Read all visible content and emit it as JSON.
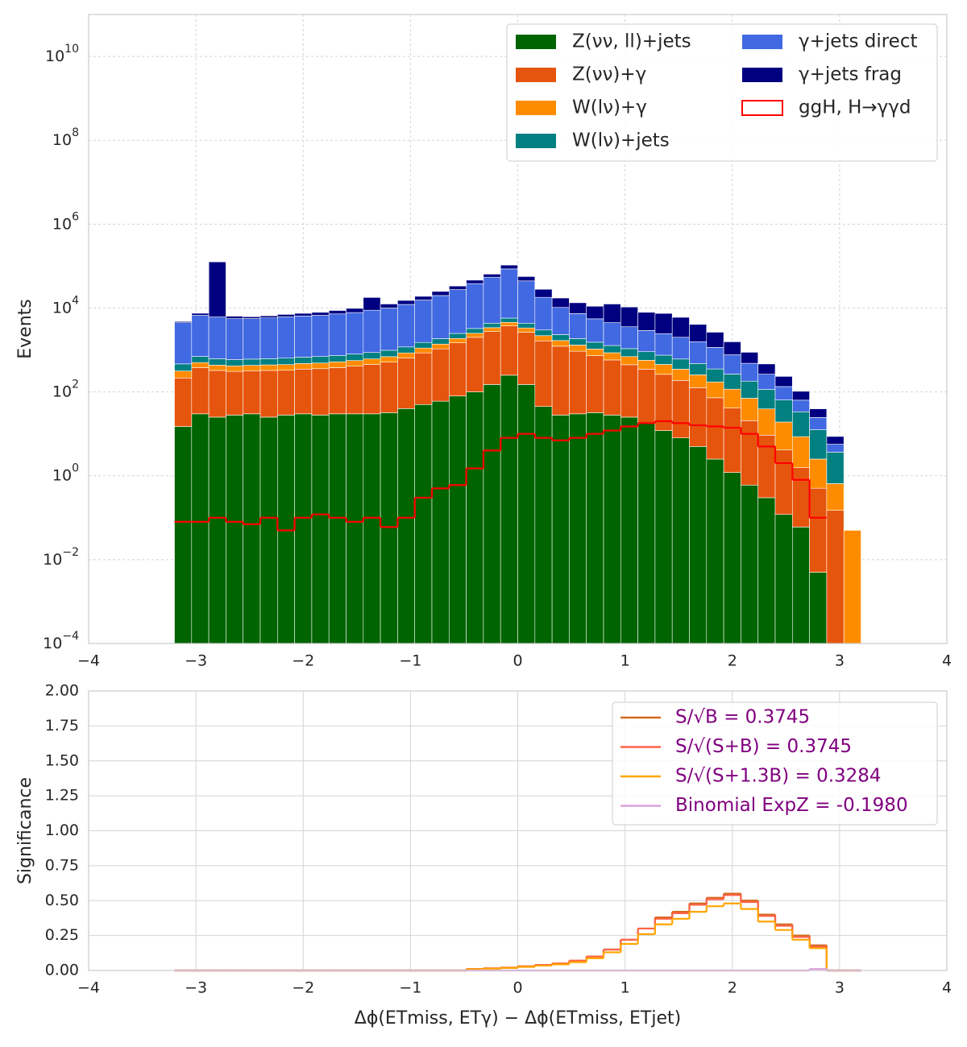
{
  "chart_data": [
    {
      "type": "histogram",
      "log": true,
      "grid": true,
      "grid_style": "dashed",
      "ylabel": "Events",
      "legend": "upper right",
      "xlim": [
        -4,
        4
      ],
      "ylim": [
        0.0001,
        100000000000
      ],
      "xticks": [
        {
          "value": -4,
          "label": "−4"
        },
        {
          "value": -3,
          "label": "−3"
        },
        {
          "value": -2,
          "label": "−2"
        },
        {
          "value": -1,
          "label": "−1"
        },
        0,
        1,
        2,
        3,
        4
      ],
      "yticks": [
        {
          "value": 0.0001,
          "label": "10−4"
        },
        {
          "value": 0.01,
          "label": "10−2"
        },
        {
          "value": 1,
          "label": "100"
        },
        {
          "value": 100,
          "label": "102"
        },
        {
          "value": 10000,
          "label": "104"
        },
        {
          "value": 1000000,
          "label": "106"
        },
        {
          "value": 100000000,
          "label": "108"
        },
        {
          "value": 10000000000,
          "label": "1010"
        }
      ],
      "bins": [
        -3.2,
        -3.04,
        -2.88,
        -2.72,
        -2.56,
        -2.4,
        -2.24,
        -2.08,
        -1.92,
        -1.76,
        -1.6,
        -1.44,
        -1.28,
        -1.12,
        -0.96,
        -0.8,
        -0.64,
        -0.48,
        -0.32,
        -0.16,
        0,
        0.16,
        0.32,
        0.48,
        0.64,
        0.8,
        0.96,
        1.12,
        1.28,
        1.44,
        1.6,
        1.76,
        1.92,
        2.08,
        2.24,
        2.4,
        2.56,
        2.72,
        2.88,
        3.04,
        3.2
      ],
      "series": [
        {
          "name": "Z(νν, ll)+jets",
          "color": "#006400",
          "values": [
            15,
            30,
            25,
            28,
            30,
            25,
            28,
            30,
            28,
            30,
            30,
            30,
            32,
            40,
            50,
            60,
            80,
            100,
            150,
            250,
            150,
            45,
            28,
            30,
            32,
            28,
            25,
            18,
            12,
            8,
            5,
            2.5,
            1.2,
            0.6,
            0.3,
            0.12,
            0.06,
            0.005,
            0,
            0
          ]
        },
        {
          "name": "Z(νν)+γ",
          "color": "#e6550d",
          "values": [
            200,
            350,
            300,
            280,
            290,
            300,
            300,
            320,
            330,
            350,
            380,
            420,
            480,
            600,
            800,
            1000,
            1400,
            1900,
            2600,
            3500,
            2500,
            1600,
            1200,
            900,
            700,
            550,
            420,
            330,
            250,
            180,
            120,
            70,
            40,
            20,
            9,
            4,
            1.5,
            0.5,
            0.15,
            0
          ]
        },
        {
          "name": "W(lν)+γ",
          "color": "#ff8c00",
          "values": [
            100,
            120,
            110,
            110,
            110,
            115,
            120,
            125,
            130,
            140,
            150,
            160,
            180,
            210,
            260,
            320,
            400,
            500,
            650,
            800,
            700,
            550,
            450,
            380,
            320,
            280,
            250,
            220,
            190,
            160,
            130,
            100,
            75,
            50,
            30,
            15,
            7,
            2,
            0.5,
            0.05
          ]
        },
        {
          "name": "W(lν)+jets",
          "color": "#008080",
          "values": [
            150,
            200,
            180,
            170,
            175,
            180,
            190,
            200,
            210,
            220,
            240,
            260,
            290,
            330,
            400,
            480,
            600,
            750,
            950,
            1200,
            1000,
            800,
            650,
            550,
            480,
            420,
            380,
            340,
            300,
            260,
            220,
            180,
            150,
            110,
            75,
            45,
            25,
            10,
            3,
            0
          ]
        },
        {
          "name": "γ+jets direct",
          "color": "#4169e1",
          "values": [
            4000,
            6000,
            5500,
            5000,
            5000,
            5200,
            5500,
            5800,
            6000,
            6500,
            7000,
            8000,
            9000,
            11000,
            14000,
            18000,
            25000,
            35000,
            50000,
            80000,
            40000,
            15000,
            8000,
            5500,
            4000,
            3200,
            2500,
            2000,
            1700,
            1400,
            1100,
            800,
            500,
            300,
            150,
            70,
            30,
            12,
            2,
            0
          ]
        },
        {
          "name": "γ+jets frag",
          "color": "#000080",
          "values": [
            300,
            800,
            120000,
            800,
            600,
            700,
            900,
            1000,
            1200,
            1500,
            2000,
            9000,
            2500,
            3000,
            3500,
            5000,
            6000,
            8000,
            10000,
            20000,
            12000,
            10000,
            7000,
            6000,
            5500,
            8000,
            7000,
            5000,
            5000,
            4000,
            2500,
            1500,
            800,
            400,
            200,
            100,
            40,
            15,
            3,
            0
          ]
        },
        {
          "name": "ggH, H→γγd",
          "color": "#ff0000",
          "histtype": "step",
          "values": [
            0.08,
            0.08,
            0.1,
            0.08,
            0.07,
            0.1,
            0.05,
            0.1,
            0.12,
            0.1,
            0.08,
            0.1,
            0.06,
            0.1,
            0.3,
            0.5,
            0.6,
            1.5,
            4,
            8,
            10,
            8,
            7,
            8,
            10,
            12,
            15,
            18,
            20,
            18,
            16,
            15,
            14,
            10,
            5,
            2,
            0.8,
            0.1,
            null,
            null
          ]
        }
      ]
    },
    {
      "type": "histogram",
      "log": false,
      "grid": true,
      "grid_style": "solid",
      "ylabel": "Significance",
      "legend": "upper right",
      "legend_text_color": "#800080",
      "xlabel": "Δϕ(ETmiss, ETγ) − Δϕ(ETmiss, ETjet)",
      "xlim": [
        -4,
        4
      ],
      "ylim": [
        0,
        2
      ],
      "xticks": [
        {
          "value": -4,
          "label": "−4"
        },
        {
          "value": -3,
          "label": "−3"
        },
        {
          "value": -2,
          "label": "−2"
        },
        {
          "value": -1,
          "label": "−1"
        },
        0,
        1,
        2,
        3,
        4
      ],
      "yticks": [
        {
          "value": 0,
          "label": "0.00"
        },
        0.25,
        {
          "value": 0.5,
          "label": "0.50"
        },
        0.75,
        {
          "value": 1,
          "label": "1.00"
        },
        1.25,
        {
          "value": 1.5,
          "label": "1.50"
        },
        1.75,
        {
          "value": 2,
          "label": "2.00"
        }
      ],
      "bins": [
        -3.2,
        -3.04,
        -2.88,
        -2.72,
        -2.56,
        -2.4,
        -2.24,
        -2.08,
        -1.92,
        -1.76,
        -1.6,
        -1.44,
        -1.28,
        -1.12,
        -0.96,
        -0.8,
        -0.64,
        -0.48,
        -0.32,
        -0.16,
        0,
        0.16,
        0.32,
        0.48,
        0.64,
        0.8,
        0.96,
        1.12,
        1.28,
        1.44,
        1.6,
        1.76,
        1.92,
        2.08,
        2.24,
        2.4,
        2.56,
        2.72,
        2.88,
        3.04,
        3.2
      ],
      "series": [
        {
          "name": "S/√B = 0.3745",
          "color": "#d2691e",
          "histtype": "step",
          "values": [
            0,
            0,
            0,
            0,
            0,
            0,
            0,
            0,
            0,
            0,
            0,
            0,
            0,
            0,
            0,
            0,
            0,
            0.01,
            0.015,
            0.02,
            0.03,
            0.04,
            0.05,
            0.07,
            0.1,
            0.15,
            0.22,
            0.3,
            0.38,
            0.42,
            0.48,
            0.52,
            0.55,
            0.5,
            0.4,
            0.33,
            0.25,
            0.18,
            0,
            0
          ]
        },
        {
          "name": "S/√(S+B) = 0.3745",
          "color": "#ff6347",
          "histtype": "step",
          "values": [
            0,
            0,
            0,
            0,
            0,
            0,
            0,
            0,
            0,
            0,
            0,
            0,
            0,
            0,
            0,
            0,
            0,
            0.01,
            0.015,
            0.02,
            0.03,
            0.04,
            0.05,
            0.07,
            0.1,
            0.15,
            0.22,
            0.3,
            0.37,
            0.41,
            0.47,
            0.51,
            0.54,
            0.49,
            0.39,
            0.32,
            0.24,
            0.17,
            0,
            0
          ]
        },
        {
          "name": "S/√(S+1.3B) = 0.3284",
          "color": "#ffa500",
          "histtype": "step",
          "values": [
            0,
            0,
            0,
            0,
            0,
            0,
            0,
            0,
            0,
            0,
            0,
            0,
            0,
            0,
            0,
            0,
            0,
            0.009,
            0.013,
            0.018,
            0.026,
            0.035,
            0.044,
            0.06,
            0.088,
            0.13,
            0.19,
            0.26,
            0.33,
            0.37,
            0.42,
            0.46,
            0.48,
            0.44,
            0.35,
            0.29,
            0.22,
            0.16,
            0,
            0
          ]
        },
        {
          "name": "Binomial ExpZ = -0.1980",
          "color": "#dda0dd",
          "histtype": "step",
          "values": [
            0,
            0,
            0,
            0,
            0,
            0,
            0,
            0,
            0,
            0,
            0,
            0,
            0,
            0,
            0,
            0,
            0,
            0,
            0,
            0,
            0,
            0,
            0,
            0,
            0,
            0,
            0,
            0,
            0,
            0,
            0,
            0,
            0,
            0,
            0,
            0,
            0,
            0.01,
            0,
            0
          ]
        }
      ]
    }
  ]
}
